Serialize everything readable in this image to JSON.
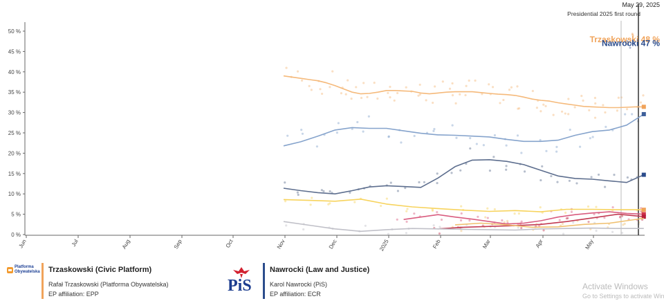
{
  "chart_data": {
    "type": "line",
    "y_ticks": [
      "0 %",
      "5 %",
      "10 %",
      "15 %",
      "20 %",
      "25 %",
      "30 %",
      "35 %",
      "40 %",
      "45 %",
      "50 %"
    ],
    "ylim": [
      0,
      52
    ],
    "x_months": [
      "Jun",
      "Jul",
      "Aug",
      "Sep",
      "Oct",
      "Nov",
      "Dec",
      "2025",
      "Feb",
      "Mar",
      "Apr",
      "May"
    ],
    "event": {
      "date": "May 29, 2025",
      "label": "Presidential 2025 first round"
    },
    "results": [
      {
        "text": "Trzaskowski 48 %",
        "value": 48,
        "color": "#f0a35a"
      },
      {
        "text": "Nawrocki 47 %",
        "value": 47,
        "color": "#2b4c8c"
      }
    ],
    "series": [
      {
        "color": "#f5b97a",
        "end_color": "#f0a35a",
        "marker": "square",
        "x": [
          0,
          5,
          10,
          15,
          20,
          25,
          30,
          35,
          40,
          45,
          50,
          55,
          60,
          65,
          70,
          75,
          80,
          85,
          90,
          95,
          100,
          105,
          110,
          115,
          120,
          125,
          130,
          135,
          140,
          145,
          150,
          155,
          160,
          165,
          170,
          175,
          180,
          185,
          190,
          195,
          200,
          205,
          210
        ],
        "values": [
          39,
          38.7,
          38.4,
          38.1,
          37.8,
          37.3,
          36.6,
          35.8,
          35,
          34.6,
          34.7,
          35,
          35.4,
          35.4,
          35.3,
          35.2,
          34.8,
          34.6,
          34.8,
          35,
          35.1,
          35.1,
          35.1,
          34.9,
          34.7,
          34.5,
          34.4,
          34.2,
          33.8,
          33.3,
          33,
          32.8,
          32.4,
          32.1,
          31.8,
          31.5,
          31.4,
          31.3,
          31.2,
          31.2,
          31.3,
          31.4,
          31.4
        ]
      },
      {
        "color": "#85a3cc",
        "end_color": "#3d5f9a",
        "marker": "square",
        "x": [
          0,
          10,
          20,
          30,
          40,
          50,
          60,
          70,
          80,
          90,
          100,
          110,
          120,
          130,
          140,
          150,
          160,
          170,
          180,
          190,
          200,
          210
        ],
        "values": [
          21.8,
          22.8,
          24.2,
          25.7,
          26.3,
          26.1,
          26.1,
          25.5,
          24.9,
          24.5,
          24.4,
          24.2,
          24,
          23.4,
          22.9,
          22.9,
          23.2,
          24.4,
          25.3,
          25.7,
          26.9,
          29.6
        ]
      },
      {
        "color": "#5d6e8e",
        "end_color": "#2b4c8c",
        "marker": "square",
        "x": [
          0,
          10,
          20,
          30,
          40,
          50,
          60,
          70,
          80,
          90,
          100,
          110,
          120,
          130,
          140,
          150,
          160,
          170,
          180,
          190,
          200,
          210
        ],
        "values": [
          11.4,
          10.8,
          10.3,
          10,
          10.8,
          11.7,
          12,
          11.8,
          11.6,
          13.9,
          16.7,
          18.3,
          18.4,
          18,
          17.2,
          15.8,
          14.4,
          13.8,
          13.6,
          13.2,
          12.8,
          14.7
        ]
      },
      {
        "color": "#f7d35c",
        "end_color": "#f0a35a",
        "marker": "square",
        "x": [
          0,
          15,
          30,
          45,
          60,
          75,
          90,
          105,
          120,
          135,
          150,
          165,
          180,
          195,
          210
        ],
        "values": [
          8.6,
          8.4,
          8.2,
          8.7,
          7.5,
          6.8,
          6.4,
          6,
          5.7,
          5.9,
          5.6,
          6.2,
          6.2,
          6.1,
          6.1
        ]
      },
      {
        "color": "#d95c7f",
        "end_color": "#d0344a",
        "marker": "square",
        "x": [
          70,
          80,
          90,
          100,
          110,
          120,
          130,
          140,
          150,
          160,
          170,
          180,
          190,
          200,
          210
        ],
        "values": [
          3.7,
          4.3,
          4.9,
          4.3,
          3.8,
          3.2,
          2.6,
          2.8,
          3.4,
          4.3,
          4.9,
          5.3,
          5.6,
          5.2,
          5
        ]
      },
      {
        "color": "#c23a52",
        "end_color": "#b8203c",
        "marker": "square",
        "x": [
          90,
          105,
          120,
          135,
          150,
          165,
          180,
          195,
          210
        ],
        "values": [
          1.4,
          1.8,
          2,
          2.2,
          2.5,
          3.2,
          4.1,
          5,
          4.4
        ]
      },
      {
        "color": "#f0c070",
        "end_color": "#f0c070",
        "marker": "none",
        "x": [
          100,
          115,
          130,
          145,
          160,
          175,
          190,
          200,
          210
        ],
        "values": [
          2.4,
          2.8,
          2.4,
          1.8,
          1.9,
          2.5,
          2.8,
          3.4,
          4
        ]
      },
      {
        "color": "#c0c0c8",
        "end_color": "#c0c0c8",
        "marker": "none",
        "x": [
          0,
          15,
          30,
          45,
          60,
          75,
          90,
          105,
          120,
          135,
          150,
          165,
          180,
          195,
          210
        ],
        "values": [
          3.2,
          2.3,
          1.4,
          0.8,
          1.2,
          1.5,
          1.4,
          1.3,
          1.2,
          1.1,
          1.4,
          1.5,
          1.6,
          1.5,
          1.5
        ]
      }
    ]
  },
  "candidates": [
    {
      "title": "Trzaskowski (Civic Platform)",
      "full_name": "Rafał Trzaskowski (Platforma Obywatelska)",
      "affiliation": "EP affiliation: EPP",
      "color": "#f0a35a",
      "logo_text_1": "Platforma",
      "logo_text_2": "Obywatelska"
    },
    {
      "title": "Nawrocki (Law and Justice)",
      "full_name": "Karol Nawrocki (PiS)",
      "affiliation": "EP affiliation: ECR",
      "color": "#2b4c8c",
      "logo_text": "PiS"
    }
  ],
  "watermark": {
    "line1": "Activate Windows",
    "line2": "Go to Settings to activate Win"
  }
}
